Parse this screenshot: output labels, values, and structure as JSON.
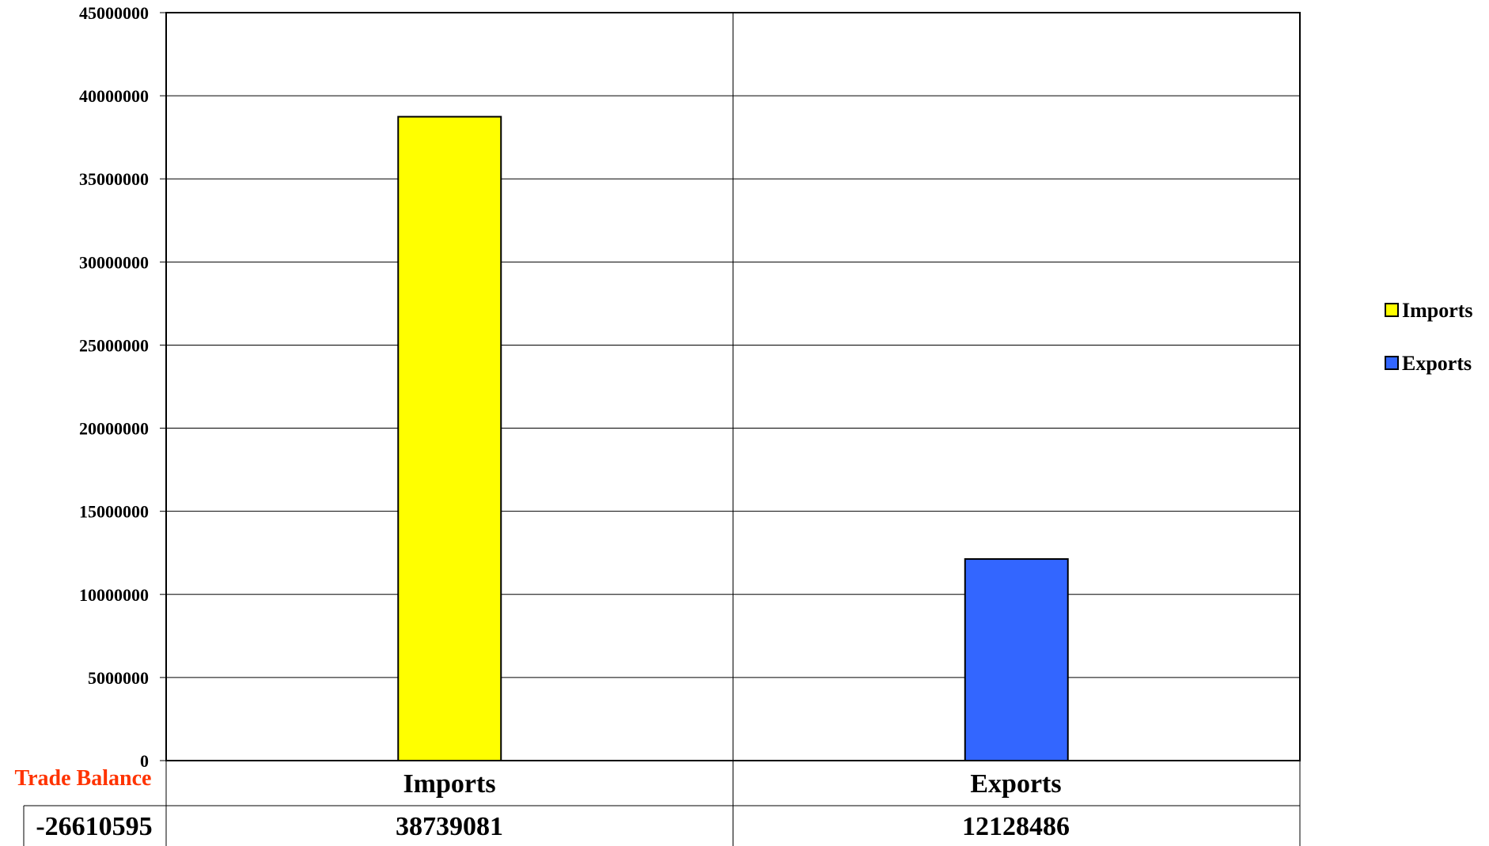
{
  "chart_data": {
    "type": "bar",
    "categories": [
      "Imports",
      "Exports"
    ],
    "values": [
      38739081,
      12128486
    ],
    "value_labels": [
      "38739081",
      "12128486"
    ],
    "colors": [
      "#ffff00",
      "#3366ff"
    ],
    "ylim": [
      0,
      45000000
    ],
    "yticks": [
      0,
      5000000,
      10000000,
      15000000,
      20000000,
      25000000,
      30000000,
      35000000,
      40000000,
      45000000
    ],
    "ytick_labels": [
      "0",
      "5000000",
      "10000000",
      "15000000",
      "20000000",
      "25000000",
      "30000000",
      "35000000",
      "40000000",
      "45000000"
    ],
    "grid": true,
    "legend": {
      "placement": "right",
      "entries": [
        {
          "label": "Imports",
          "color": "#ffff00"
        },
        {
          "label": "Exports",
          "color": "#3366ff"
        }
      ]
    },
    "data_table": {
      "row_header": "Trade Balance",
      "row_header_color": "#ff3300",
      "row_value": "-26610595"
    }
  }
}
